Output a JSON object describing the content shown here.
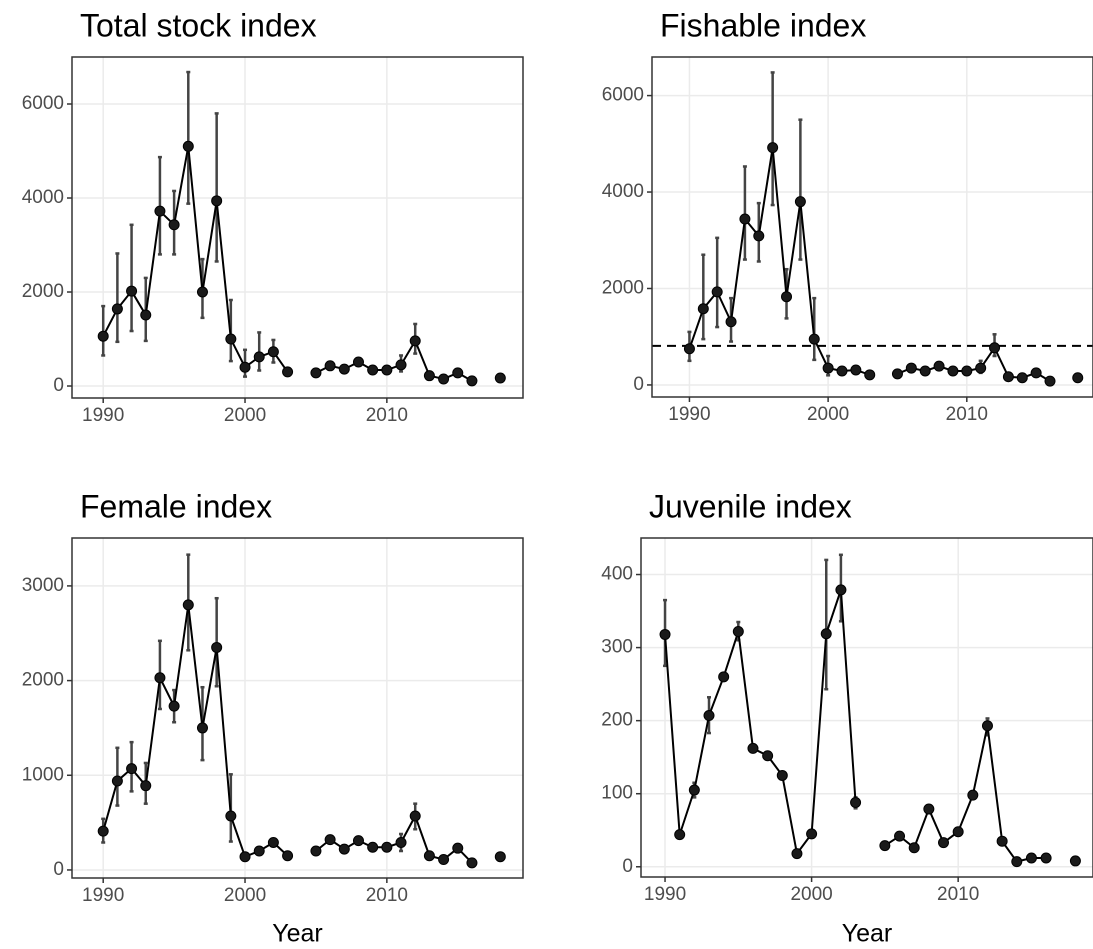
{
  "chart_data": [
    {
      "type": "line",
      "title": "Total stock index",
      "x": [
        1990,
        1991,
        1992,
        1993,
        1994,
        1995,
        1996,
        1997,
        1998,
        1999,
        2000,
        2001,
        2002,
        2003,
        2004,
        2005,
        2006,
        2007,
        2008,
        2009,
        2010,
        2011,
        2012,
        2013,
        2014,
        2015,
        2016,
        2017,
        2018
      ],
      "values": [
        1060,
        1640,
        2020,
        1510,
        3720,
        3430,
        5100,
        2000,
        3940,
        1000,
        400,
        620,
        730,
        300,
        null,
        280,
        430,
        360,
        510,
        340,
        340,
        450,
        960,
        220,
        150,
        280,
        110,
        null,
        170
      ],
      "lower": [
        650,
        940,
        1170,
        960,
        2800,
        2800,
        3880,
        1450,
        2650,
        530,
        200,
        330,
        500,
        null,
        null,
        null,
        null,
        null,
        null,
        null,
        null,
        310,
        690,
        null,
        null,
        null,
        null,
        null,
        null
      ],
      "upper": [
        1700,
        2820,
        3430,
        2300,
        4870,
        4150,
        6680,
        2700,
        5800,
        1830,
        770,
        1140,
        980,
        null,
        null,
        null,
        null,
        null,
        null,
        null,
        null,
        650,
        1320,
        null,
        null,
        null,
        null,
        null,
        null
      ],
      "xlim": [
        1987.8,
        2019.6
      ],
      "ylim": [
        -255,
        7000
      ],
      "xticks": [
        1990,
        2000,
        2010
      ],
      "yticks": [
        0,
        2000,
        4000,
        6000
      ],
      "grid": true,
      "color": "#000000"
    },
    {
      "type": "line",
      "title": "Fishable index",
      "x": [
        1990,
        1991,
        1992,
        1993,
        1994,
        1995,
        1996,
        1997,
        1998,
        1999,
        2000,
        2001,
        2002,
        2003,
        2004,
        2005,
        2006,
        2007,
        2008,
        2009,
        2010,
        2011,
        2012,
        2013,
        2014,
        2015,
        2016,
        2017,
        2018
      ],
      "values": [
        750,
        1580,
        1930,
        1310,
        3440,
        3090,
        4920,
        1830,
        3800,
        950,
        350,
        290,
        310,
        210,
        null,
        230,
        350,
        290,
        390,
        290,
        290,
        350,
        770,
        170,
        150,
        250,
        80,
        null,
        150
      ],
      "lower": [
        500,
        950,
        1200,
        900,
        2600,
        2560,
        3730,
        1380,
        2600,
        520,
        200,
        null,
        null,
        null,
        null,
        null,
        null,
        null,
        null,
        null,
        null,
        250,
        600,
        null,
        null,
        null,
        null,
        null,
        null
      ],
      "upper": [
        1100,
        2700,
        3050,
        1800,
        4530,
        3770,
        6480,
        2400,
        5500,
        1800,
        600,
        null,
        null,
        null,
        null,
        null,
        null,
        null,
        null,
        null,
        null,
        500,
        1050,
        null,
        null,
        null,
        null,
        null,
        null
      ],
      "hline": 810,
      "xlim": [
        1987.3,
        2019.1
      ],
      "ylim": [
        -250,
        6800
      ],
      "xticks": [
        1990,
        2000,
        2010
      ],
      "yticks": [
        0,
        2000,
        4000,
        6000
      ],
      "grid": true,
      "color": "#000000"
    },
    {
      "type": "line",
      "title": "Female index",
      "x_label": "Year",
      "x": [
        1990,
        1991,
        1992,
        1993,
        1994,
        1995,
        1996,
        1997,
        1998,
        1999,
        2000,
        2001,
        2002,
        2003,
        2004,
        2005,
        2006,
        2007,
        2008,
        2009,
        2010,
        2011,
        2012,
        2013,
        2014,
        2015,
        2016,
        2017,
        2018
      ],
      "values": [
        410,
        940,
        1070,
        890,
        2030,
        1730,
        2800,
        1500,
        2350,
        570,
        140,
        200,
        290,
        150,
        null,
        200,
        320,
        220,
        310,
        240,
        240,
        290,
        570,
        150,
        110,
        230,
        75,
        null,
        140
      ],
      "lower": [
        290,
        680,
        830,
        700,
        1700,
        1560,
        2320,
        1160,
        1940,
        300,
        null,
        null,
        null,
        null,
        null,
        null,
        null,
        null,
        null,
        null,
        null,
        200,
        430,
        null,
        null,
        null,
        null,
        null,
        null
      ],
      "upper": [
        540,
        1290,
        1350,
        1130,
        2420,
        1900,
        3330,
        1930,
        2870,
        1010,
        null,
        null,
        null,
        null,
        null,
        null,
        null,
        null,
        null,
        null,
        null,
        380,
        700,
        null,
        null,
        null,
        null,
        null,
        null
      ],
      "xlim": [
        1987.8,
        2019.6
      ],
      "ylim": [
        -85,
        3506
      ],
      "xticks": [
        1990,
        2000,
        2010
      ],
      "yticks": [
        0,
        1000,
        2000,
        3000
      ],
      "grid": true,
      "color": "#000000"
    },
    {
      "type": "line",
      "title": "Juvenile index",
      "x_label": "Year",
      "x": [
        1990,
        1991,
        1992,
        1993,
        1994,
        1995,
        1996,
        1997,
        1998,
        1999,
        2000,
        2001,
        2002,
        2003,
        2004,
        2005,
        2006,
        2007,
        2008,
        2009,
        2010,
        2011,
        2012,
        2013,
        2014,
        2015,
        2016,
        2017,
        2018
      ],
      "values": [
        318,
        44,
        105,
        207,
        260,
        322,
        162,
        152,
        125,
        18,
        45,
        319,
        379,
        88,
        null,
        29,
        42,
        26,
        79,
        33,
        48,
        98,
        193,
        35,
        7,
        12,
        12,
        null,
        8
      ],
      "lower": [
        275,
        null,
        95,
        183,
        null,
        310,
        null,
        null,
        null,
        null,
        null,
        243,
        336,
        80,
        null,
        null,
        null,
        null,
        null,
        null,
        null,
        null,
        180,
        null,
        null,
        null,
        null,
        null,
        null
      ],
      "upper": [
        365,
        null,
        115,
        232,
        null,
        335,
        null,
        null,
        null,
        null,
        null,
        420,
        427,
        95,
        null,
        null,
        null,
        null,
        null,
        null,
        null,
        null,
        203,
        null,
        null,
        null,
        null,
        null,
        null
      ],
      "xlim": [
        1988.36,
        2019.2
      ],
      "ylim": [
        -14,
        450
      ],
      "xticks": [
        1990,
        2000,
        2010
      ],
      "yticks": [
        0,
        100,
        200,
        300,
        400
      ],
      "grid": true,
      "color": "#000000"
    }
  ]
}
